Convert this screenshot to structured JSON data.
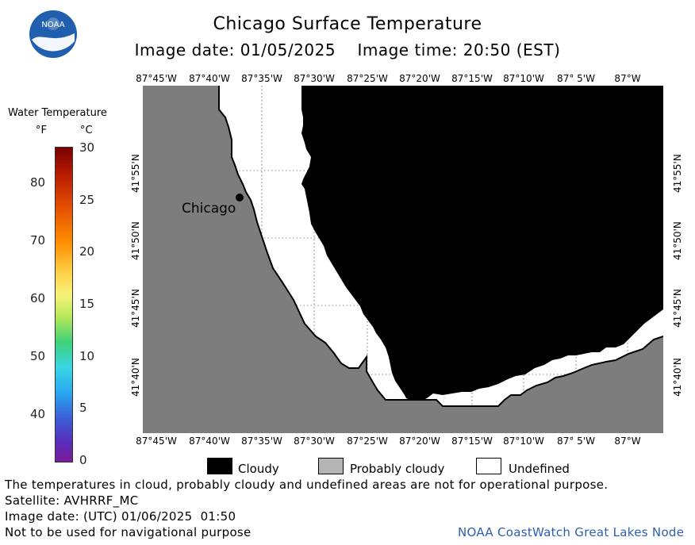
{
  "header": {
    "title": "Chicago Surface Temperature",
    "subtitle": "Image date: 01/05/2025    Image time: 20:50 (EST)",
    "logo_text": "NOAA"
  },
  "map": {
    "city_label": "Chicago",
    "lon_labels": [
      "87°45'W",
      "87°40'W",
      "87°35'W",
      "87°30'W",
      "87°25'W",
      "87°20'W",
      "87°15'W",
      "87°10'W",
      "87° 5'W",
      "87°W"
    ],
    "lat_labels": [
      "41°55'N",
      "41°50'N",
      "41°45'N",
      "41°40'N"
    ]
  },
  "colorbar": {
    "title": "Water Temperature",
    "unit_f": "°F",
    "unit_c": "°C",
    "f_ticks": [
      "80",
      "70",
      "60",
      "50",
      "40"
    ],
    "c_ticks": [
      "30",
      "25",
      "20",
      "15",
      "10",
      "5",
      "0"
    ]
  },
  "legend": {
    "cloudy": "Cloudy",
    "probably_cloudy": "Probably cloudy",
    "undefined": "Undefined",
    "colors": {
      "cloudy": "#000000",
      "probably_cloudy": "#b4b4b4",
      "undefined": "#ffffff",
      "land": "#7d7d7d"
    }
  },
  "footer": {
    "line1": "The temperatures in cloud, probably cloudy and undefined areas are not for operational purpose.",
    "line2": "Satellite: AVHRRF_MC",
    "line3": "Image date: (UTC) 01/06/2025  01:50",
    "line4": "Not to be used for navigational purpose",
    "credit": "NOAA CoastWatch Great Lakes Node"
  }
}
